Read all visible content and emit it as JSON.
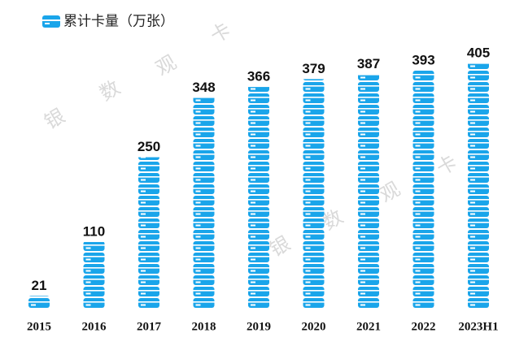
{
  "chart_data": {
    "type": "pictograph-bar",
    "title": "累计卡量（万张）",
    "categories": [
      "2015",
      "2016",
      "2017",
      "2018",
      "2019",
      "2020",
      "2021",
      "2022",
      "2023H1"
    ],
    "values": [
      21,
      110,
      250,
      348,
      366,
      379,
      387,
      393,
      405
    ],
    "color": "#1aa5ea",
    "watermark": [
      "银",
      "数",
      "观",
      "卡"
    ]
  }
}
